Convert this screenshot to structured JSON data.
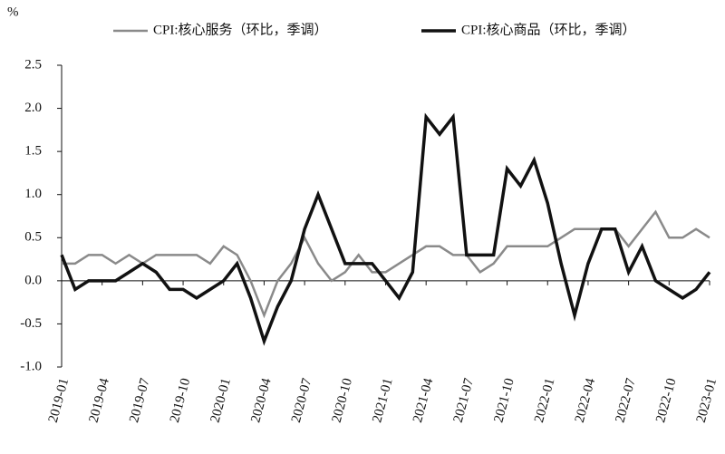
{
  "chart_data": {
    "type": "line",
    "y_unit": "%",
    "categories": [
      "2019-01",
      null,
      null,
      "2019-04",
      null,
      null,
      "2019-07",
      null,
      null,
      "2019-10",
      null,
      null,
      "2020-01",
      null,
      null,
      "2020-04",
      null,
      null,
      "2020-07",
      null,
      null,
      "2020-10",
      null,
      null,
      "2021-01",
      null,
      null,
      "2021-04",
      null,
      null,
      "2021-07",
      null,
      null,
      "2021-10",
      null,
      null,
      "2022-01",
      null,
      null,
      "2022-04",
      null,
      null,
      "2022-07",
      null,
      null,
      "2022-10",
      null,
      null,
      "2023-01"
    ],
    "series": [
      {
        "name": "CPI:核心服务（环比，季调）",
        "color": "#8a8a8a",
        "values": [
          0.2,
          0.2,
          0.3,
          0.3,
          0.2,
          0.3,
          0.2,
          0.3,
          0.3,
          0.3,
          0.3,
          0.2,
          0.4,
          0.3,
          0.0,
          -0.4,
          0.0,
          0.2,
          0.5,
          0.2,
          0.0,
          0.1,
          0.3,
          0.1,
          0.1,
          0.2,
          0.3,
          0.4,
          0.4,
          0.3,
          0.3,
          0.1,
          0.2,
          0.4,
          0.4,
          0.4,
          0.4,
          0.5,
          0.6,
          0.6,
          0.6,
          0.6,
          0.4,
          0.6,
          0.8,
          0.5,
          0.5,
          0.6,
          0.5
        ]
      },
      {
        "name": "CPI:核心商品（环比，季调）",
        "color": "#111111",
        "values": [
          0.3,
          -0.1,
          0.0,
          0.0,
          0.0,
          0.1,
          0.2,
          0.1,
          -0.1,
          -0.1,
          -0.2,
          -0.1,
          0.0,
          0.2,
          -0.2,
          -0.7,
          -0.3,
          0.0,
          0.6,
          1.0,
          0.6,
          0.2,
          0.2,
          0.2,
          0.0,
          -0.2,
          0.1,
          1.9,
          1.7,
          1.9,
          0.3,
          0.3,
          0.3,
          1.3,
          1.1,
          1.4,
          0.9,
          0.2,
          -0.4,
          0.2,
          0.6,
          0.6,
          0.1,
          0.4,
          0.0,
          -0.1,
          -0.2,
          -0.1,
          0.1
        ]
      }
    ],
    "ylim": [
      -1.0,
      2.5
    ],
    "yticks": [
      {
        "value": -1.0,
        "label": "-1.0"
      },
      -0.5,
      {
        "value": 0,
        "label": "0.0"
      },
      0.5,
      {
        "value": 1.0,
        "label": "1.0"
      },
      1.5,
      {
        "value": 2.0,
        "label": "2.0"
      },
      2.5
    ],
    "grid": false
  }
}
